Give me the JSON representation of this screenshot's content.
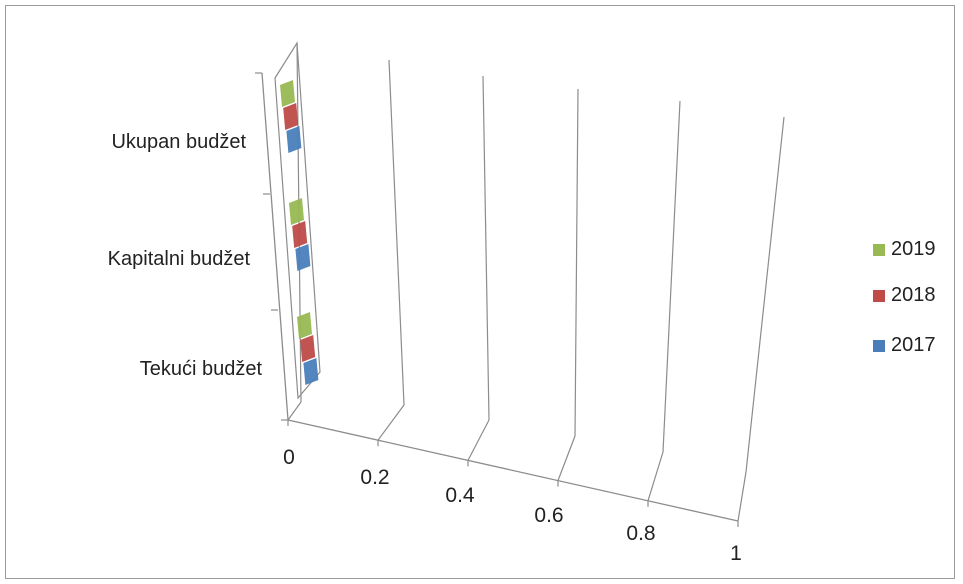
{
  "chart_data": {
    "type": "bar",
    "orientation": "horizontal",
    "style": "3d",
    "categories": [
      "Tekući budžet",
      "Kapitalni budžet",
      "Ukupan budžet"
    ],
    "series": [
      {
        "name": "2017",
        "color": "#4a7ebb",
        "values": [
          0,
          0,
          0
        ]
      },
      {
        "name": "2018",
        "color": "#be4b48",
        "values": [
          0,
          0,
          0
        ]
      },
      {
        "name": "2019",
        "color": "#98b954",
        "values": [
          0,
          0,
          0
        ]
      }
    ],
    "x_ticks": [
      "0",
      "0.2",
      "0.4",
      "0.6",
      "0.8",
      "1"
    ],
    "xlim": [
      0,
      1
    ],
    "grid": true,
    "legend_position": "right"
  }
}
